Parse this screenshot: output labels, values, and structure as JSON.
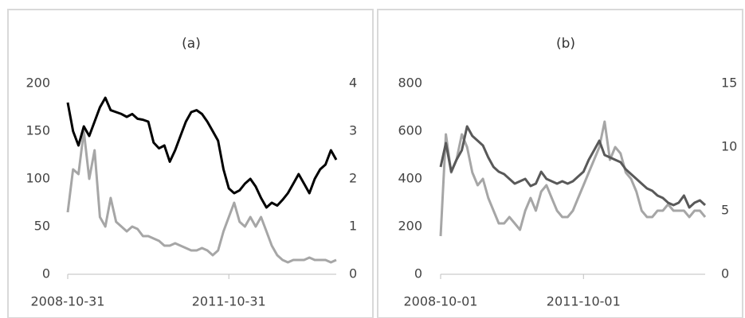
{
  "chart_data": [
    {
      "type": "line",
      "title": "(a)",
      "categories": [
        "2008-10-31",
        null,
        null,
        null,
        null,
        null,
        null,
        null,
        null,
        null,
        null,
        null,
        null,
        null,
        null,
        null,
        null,
        null,
        null,
        null,
        null,
        null,
        null,
        null,
        null,
        null,
        null,
        null,
        null,
        null,
        "2011-10-31",
        null,
        null,
        null,
        null,
        null,
        null,
        null,
        null,
        null,
        null,
        null,
        null,
        null,
        null,
        null,
        null,
        null,
        null,
        null,
        null
      ],
      "ylim": [
        0,
        200
      ],
      "yticks": [
        0,
        50,
        100,
        150,
        200
      ],
      "y2lim": [
        0,
        4
      ],
      "y2ticks": [
        0,
        1,
        2,
        3,
        4
      ],
      "series": [
        {
          "color": "#000000",
          "values": [
            180,
            150,
            135,
            155,
            145,
            160,
            175,
            185,
            172,
            170,
            168,
            165,
            168,
            163,
            162,
            160,
            138,
            132,
            135,
            118,
            130,
            145,
            160,
            170,
            172,
            168,
            160,
            150,
            140,
            110,
            90,
            85,
            88,
            95,
            100,
            92,
            80,
            70,
            75,
            72,
            78,
            85,
            95,
            105,
            95,
            85,
            100,
            110,
            115,
            130,
            120
          ]
        },
        {
          "color": "#a6a6a6",
          "axis": "y2",
          "values": [
            1.3,
            2.2,
            2.1,
            3.0,
            2.0,
            2.6,
            1.2,
            1.0,
            1.6,
            1.1,
            1.0,
            0.9,
            1.0,
            0.95,
            0.8,
            0.8,
            0.75,
            0.7,
            0.6,
            0.6,
            0.65,
            0.6,
            0.55,
            0.5,
            0.5,
            0.55,
            0.5,
            0.4,
            0.5,
            0.9,
            1.2,
            1.5,
            1.1,
            1.0,
            1.2,
            1.0,
            1.2,
            0.9,
            0.6,
            0.4,
            0.3,
            0.25,
            0.3,
            0.3,
            0.3,
            0.35,
            0.3,
            0.3,
            0.3,
            0.25,
            0.3
          ]
        }
      ]
    },
    {
      "type": "line",
      "title": "(b)",
      "categories": [
        "2008-10-01",
        null,
        null,
        null,
        null,
        null,
        null,
        null,
        null,
        null,
        null,
        null,
        null,
        null,
        null,
        null,
        null,
        null,
        null,
        null,
        null,
        null,
        null,
        null,
        null,
        null,
        null,
        "2011-10-01",
        null,
        null,
        null,
        null,
        null,
        null,
        null,
        null,
        null,
        null,
        null,
        null,
        null,
        null,
        null,
        null,
        null,
        null,
        null,
        null,
        null,
        null,
        null
      ],
      "ylim": [
        0,
        800
      ],
      "yticks": [
        0,
        200,
        400,
        600,
        800
      ],
      "y2lim": [
        0,
        15
      ],
      "y2ticks": [
        0,
        5,
        10,
        15
      ],
      "series": [
        {
          "color": "#595959",
          "values": [
            450,
            550,
            430,
            480,
            520,
            620,
            580,
            560,
            540,
            490,
            450,
            430,
            420,
            400,
            380,
            390,
            400,
            370,
            380,
            430,
            400,
            390,
            380,
            390,
            380,
            390,
            410,
            430,
            480,
            520,
            560,
            500,
            490,
            480,
            470,
            440,
            420,
            400,
            380,
            360,
            350,
            330,
            320,
            300,
            290,
            300,
            330,
            280,
            300,
            310,
            290
          ]
        },
        {
          "color": "#a6a6a6",
          "axis": "y2",
          "values": [
            3,
            11,
            8,
            9,
            11,
            10,
            8,
            7,
            7.5,
            6,
            5,
            4,
            4,
            4.5,
            4,
            3.5,
            5,
            6,
            5,
            6.5,
            7,
            6,
            5,
            4.5,
            4.5,
            5,
            6,
            7,
            8,
            9,
            10,
            12,
            9,
            10,
            9.5,
            8,
            7.5,
            6.5,
            5,
            4.5,
            4.5,
            5,
            5,
            5.5,
            5,
            5,
            5,
            4.5,
            5,
            5,
            4.5
          ]
        }
      ]
    }
  ]
}
